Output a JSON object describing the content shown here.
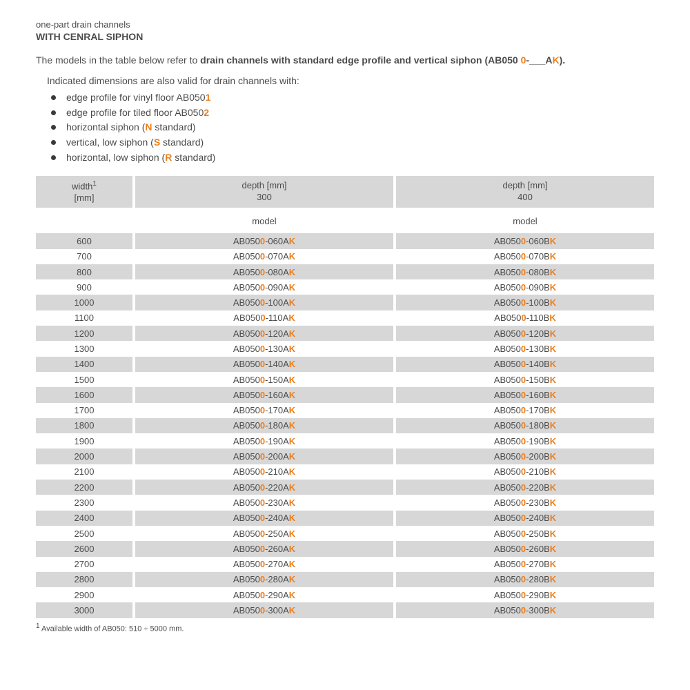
{
  "colors": {
    "highlight": "#ee7e1a",
    "text": "#4b4b4b",
    "shade": "#d7d7d7",
    "background": "#ffffff"
  },
  "header": {
    "subtitle": "one-part drain channels",
    "title": "WITH CENRAL SIPHON"
  },
  "intro": {
    "prefix": "The models in the table below refer to ",
    "bold": "drain channels with standard edge profile and vertical siphon (AB050",
    "hl1": " 0",
    "mid": "-___A",
    "hl2": "K",
    "suffix": ")."
  },
  "notes": {
    "lead": "Indicated dimensions are also valid for drain channels with:",
    "items": [
      {
        "text": "edge profile for vinyl floor AB050",
        "hl": "1"
      },
      {
        "text": "edge profile for tiled floor AB050",
        "hl": "2"
      },
      {
        "text": "horizontal siphon (",
        "hl": "N",
        "tail": " standard)"
      },
      {
        "text": "vertical, low siphon (",
        "hl": "S",
        "tail": " standard)"
      },
      {
        "text": "horizontal, low siphon (",
        "hl": "R",
        "tail": " standard)"
      }
    ]
  },
  "table": {
    "col1_header_l1": "width",
    "col1_header_sup": "1",
    "col1_header_l2": "[mm]",
    "depth_label": "depth [mm]",
    "depths": [
      "300",
      "400"
    ],
    "subheader": "model",
    "model_prefix": "AB050",
    "model_mid_hl": "0",
    "model_dash": "-",
    "model_end_hl": "K",
    "columns_suffix": [
      "A",
      "B"
    ],
    "rows": [
      {
        "width": "600",
        "code": "060"
      },
      {
        "width": "700",
        "code": "070"
      },
      {
        "width": "800",
        "code": "080"
      },
      {
        "width": "900",
        "code": "090"
      },
      {
        "width": "1000",
        "code": "100"
      },
      {
        "width": "1100",
        "code": "110"
      },
      {
        "width": "1200",
        "code": "120"
      },
      {
        "width": "1300",
        "code": "130"
      },
      {
        "width": "1400",
        "code": "140"
      },
      {
        "width": "1500",
        "code": "150"
      },
      {
        "width": "1600",
        "code": "160"
      },
      {
        "width": "1700",
        "code": "170"
      },
      {
        "width": "1800",
        "code": "180"
      },
      {
        "width": "1900",
        "code": "190"
      },
      {
        "width": "2000",
        "code": "200"
      },
      {
        "width": "2100",
        "code": "210"
      },
      {
        "width": "2200",
        "code": "220"
      },
      {
        "width": "2300",
        "code": "230"
      },
      {
        "width": "2400",
        "code": "240"
      },
      {
        "width": "2500",
        "code": "250"
      },
      {
        "width": "2600",
        "code": "260"
      },
      {
        "width": "2700",
        "code": "270"
      },
      {
        "width": "2800",
        "code": "280"
      },
      {
        "width": "2900",
        "code": "290"
      },
      {
        "width": "3000",
        "code": "300"
      }
    ]
  },
  "footnote": {
    "sup": "1",
    "text": " Available width of AB050: 510 ÷ 5000 mm."
  }
}
